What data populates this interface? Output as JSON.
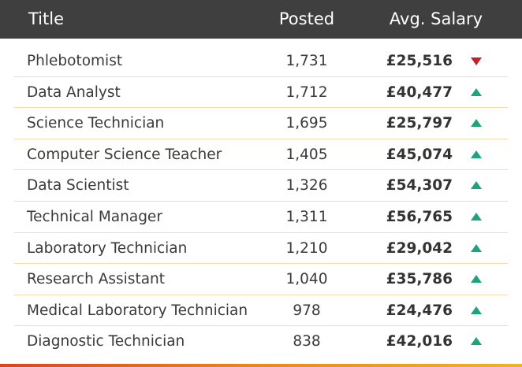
{
  "header": {
    "title": "Title",
    "posted": "Posted",
    "salary": "Avg. Salary"
  },
  "colors": {
    "header_bg": "#3f3f3f",
    "up": "#1fa37a",
    "down": "#c4202b",
    "row_divider": "#f3dfa6"
  },
  "rows": [
    {
      "title": "Phlebotomist",
      "posted": "1,731",
      "salary": "£25,516",
      "trend": "down"
    },
    {
      "title": "Data Analyst",
      "posted": "1,712",
      "salary": "£40,477",
      "trend": "up"
    },
    {
      "title": "Science Technician",
      "posted": "1,695",
      "salary": "£25,797",
      "trend": "up"
    },
    {
      "title": "Computer Science Teacher",
      "posted": "1,405",
      "salary": "£45,074",
      "trend": "up"
    },
    {
      "title": "Data Scientist",
      "posted": "1,326",
      "salary": "£54,307",
      "trend": "up"
    },
    {
      "title": "Technical Manager",
      "posted": "1,311",
      "salary": "£56,765",
      "trend": "up"
    },
    {
      "title": "Laboratory Technician",
      "posted": "1,210",
      "salary": "£29,042",
      "trend": "up"
    },
    {
      "title": "Research Assistant",
      "posted": "1,040",
      "salary": "£35,786",
      "trend": "up"
    },
    {
      "title": "Medical Laboratory Technician",
      "posted": "978",
      "salary": "£24,476",
      "trend": "up"
    },
    {
      "title": "Diagnostic Technician",
      "posted": "838",
      "salary": "£42,016",
      "trend": "up"
    }
  ]
}
